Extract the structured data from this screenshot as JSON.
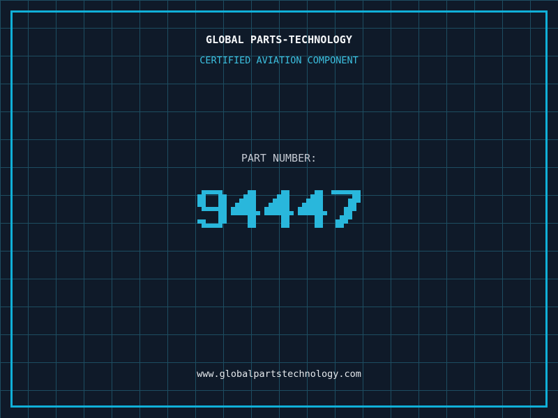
{
  "header": {
    "title": "GLOBAL PARTS-TECHNOLOGY",
    "subtitle": "CERTIFIED AVIATION COMPONENT"
  },
  "part": {
    "label": "PART NUMBER:",
    "number": "94447"
  },
  "footer": {
    "url": "www.globalpartstechnology.com"
  },
  "colors": {
    "background": "#0f1a29",
    "grid_line": "#1d4d61",
    "frame": "#10b0d8",
    "accent_cyan": "#29b7dc",
    "title_text": "#f5f7f9",
    "subtitle_text": "#3cc0e0",
    "label_text": "#c5cad3",
    "footer_text": "#e4e8ec"
  }
}
